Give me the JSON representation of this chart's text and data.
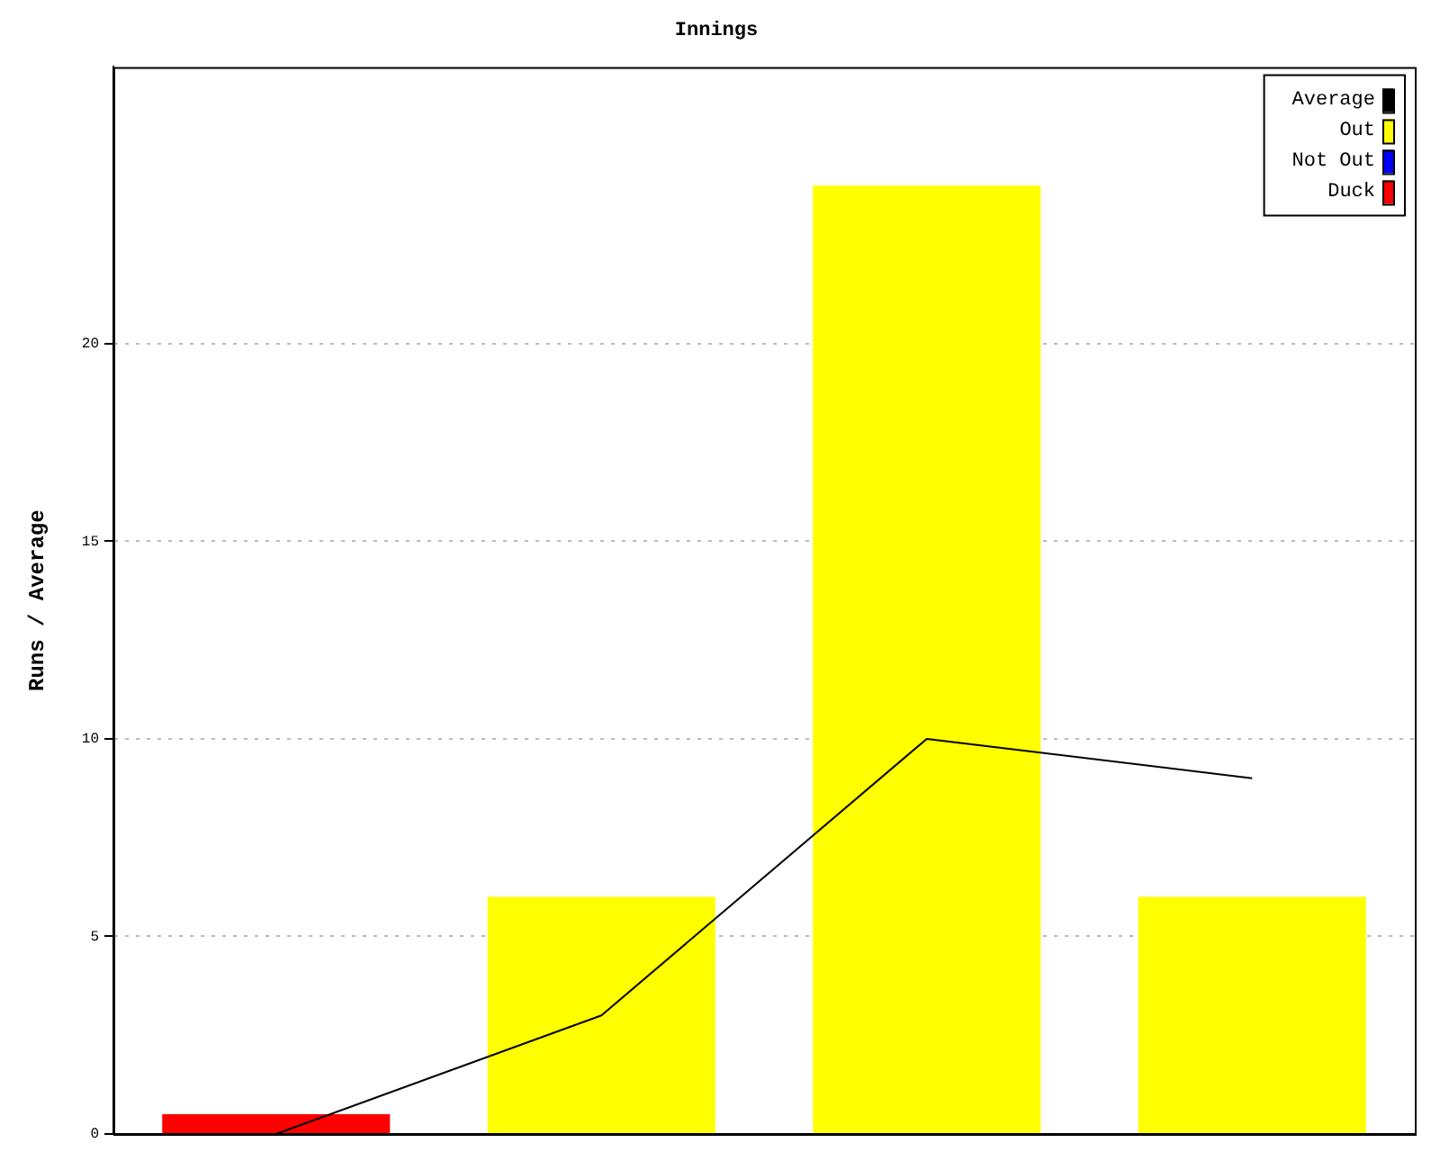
{
  "chart_data": {
    "type": "bar",
    "title": "Innings",
    "ylabel": "Runs / Average",
    "categories": [
      null,
      null,
      null,
      null
    ],
    "series": [
      {
        "name": "Average",
        "type": "line",
        "color": "#000000",
        "values": [
          0,
          3,
          10,
          9
        ]
      },
      {
        "name": "Out",
        "color": "#ffff00",
        "values": [
          null,
          6,
          24,
          6
        ]
      },
      {
        "name": "Not Out",
        "color": "#0000ff",
        "values": [
          null,
          null,
          null,
          null
        ]
      },
      {
        "name": "Duck",
        "color": "#ff0000",
        "values": [
          0.5,
          null,
          null,
          null
        ]
      }
    ],
    "stacked": true,
    "ylim": [
      0,
      27
    ],
    "yticks": [
      0,
      5,
      10,
      15,
      20
    ],
    "grid": "y",
    "legend": "top right",
    "tick_labels": "y",
    "marker": "none"
  }
}
